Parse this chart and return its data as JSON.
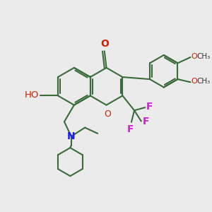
{
  "bg_color": "#ebebeb",
  "bond_color": "#3a6b3a",
  "bond_lw": 1.5,
  "o_color": "#cc2200",
  "n_color": "#1a1aff",
  "f_color": "#cc22cc",
  "text_color": "#333333",
  "figsize": [
    3.0,
    3.0
  ],
  "dpi": 100,
  "xlim": [
    0,
    10
  ],
  "ylim": [
    0,
    10
  ]
}
